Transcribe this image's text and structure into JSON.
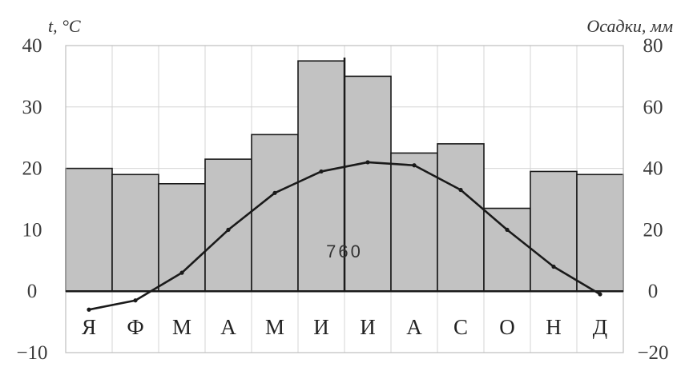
{
  "chart_data": {
    "type": "bar",
    "left_axis_label": "t, °C",
    "right_axis_label": "Осадки, мм",
    "categories": [
      "Я",
      "Ф",
      "М",
      "А",
      "М",
      "И",
      "И",
      "А",
      "С",
      "О",
      "Н",
      "Д"
    ],
    "left_ylim": [
      -10,
      40
    ],
    "left_ticks": [
      "40",
      "30",
      "20",
      "10",
      "0",
      "−10"
    ],
    "right_ylim": [
      -20,
      80
    ],
    "right_ticks": [
      "80",
      "60",
      "40",
      "20",
      "0",
      "−20"
    ],
    "grid": true,
    "series": [
      {
        "kind": "bar",
        "axis": "right",
        "unit": "мм",
        "values": [
          40,
          38,
          35,
          43,
          51,
          75,
          70,
          45,
          48,
          27,
          39,
          38
        ]
      },
      {
        "kind": "line",
        "axis": "left",
        "unit": "°C",
        "values": [
          -3,
          -1.5,
          3,
          10,
          16,
          19.5,
          21,
          20.5,
          16.5,
          10,
          4,
          -0.5
        ]
      }
    ],
    "annotation": "760",
    "colors": {
      "bar_fill": "#c2c2c2",
      "bar_stroke": "#1a1a1a",
      "line": "#1a1a1a",
      "grid": "#d4d4d4"
    }
  }
}
